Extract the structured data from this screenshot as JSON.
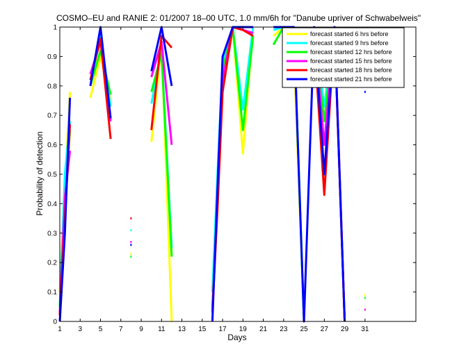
{
  "chart_data": {
    "type": "line",
    "title": "COSMO–EU and RANIE 2: 01/2007 18–00 UTC, 1.0 mm/6h for \"Danube upriver of Schwabelweis\"",
    "xlabel": "Days",
    "ylabel": "Probability of detection",
    "xlim": [
      1,
      36
    ],
    "ylim": [
      0,
      1
    ],
    "xticks": [
      1,
      3,
      5,
      7,
      9,
      11,
      13,
      15,
      17,
      19,
      21,
      23,
      25,
      27,
      29,
      31
    ],
    "yticks": [
      0,
      0.1,
      0.2,
      0.3,
      0.4,
      0.5,
      0.6,
      0.7,
      0.8,
      0.9,
      1
    ],
    "legend_position": "top-right",
    "series": [
      {
        "name": "forecast started 6 hrs before",
        "color": "#ffff00",
        "points": [
          [
            1,
            0.1
          ],
          [
            1.5,
            0.45
          ],
          [
            2,
            0.78
          ],
          [
            null,
            null
          ],
          [
            4,
            0.76
          ],
          [
            5,
            0.9
          ],
          [
            6,
            0.75
          ],
          [
            null,
            null
          ],
          [
            8,
            0.23
          ],
          [
            null,
            null
          ],
          [
            10,
            0.61
          ],
          [
            11,
            0.94
          ],
          [
            12,
            0.0
          ],
          [
            null,
            null
          ],
          [
            16,
            0.06
          ],
          [
            16.5,
            0.38
          ],
          [
            17,
            0.8
          ],
          [
            18,
            1.0
          ],
          [
            19,
            0.57
          ],
          [
            20,
            1.0
          ],
          [
            null,
            null
          ],
          [
            22,
            0.97
          ],
          [
            23,
            1.0
          ],
          [
            24,
            0.93
          ],
          [
            25,
            0.0
          ],
          [
            null,
            null
          ],
          [
            26,
            0.96
          ],
          [
            27,
            0.91
          ],
          [
            28,
            1.0
          ],
          [
            29,
            0.0
          ],
          [
            null,
            null
          ],
          [
            31,
            0.09
          ]
        ]
      },
      {
        "name": "forecast started 9 hrs before",
        "color": "#00ffff",
        "points": [
          [
            1,
            0.05
          ],
          [
            1.5,
            0.5
          ],
          [
            2,
            0.68
          ],
          [
            null,
            null
          ],
          [
            4,
            0.82
          ],
          [
            5,
            0.97
          ],
          [
            6,
            0.73
          ],
          [
            null,
            null
          ],
          [
            8,
            0.31
          ],
          [
            null,
            null
          ],
          [
            10,
            0.74
          ],
          [
            11,
            0.92
          ],
          [
            12,
            0.25
          ],
          [
            null,
            null
          ],
          [
            16,
            0.1
          ],
          [
            16.5,
            0.5
          ],
          [
            17,
            0.88
          ],
          [
            18,
            1.0
          ],
          [
            19,
            0.72
          ],
          [
            20,
            1.0
          ],
          [
            null,
            null
          ],
          [
            22,
            0.99
          ],
          [
            23,
            1.0
          ],
          [
            24,
            1.0
          ],
          [
            25,
            0.0
          ],
          [
            null,
            null
          ],
          [
            26,
            0.99
          ],
          [
            27,
            0.73
          ],
          [
            28,
            1.0
          ],
          [
            29,
            0.0
          ]
        ]
      },
      {
        "name": "forecast started 12 hrs before",
        "color": "#00ff00",
        "points": [
          [
            1,
            0.05
          ],
          [
            1.5,
            0.4
          ],
          [
            2,
            0.65
          ],
          [
            null,
            null
          ],
          [
            4,
            0.8
          ],
          [
            5,
            0.92
          ],
          [
            6,
            0.77
          ],
          [
            null,
            null
          ],
          [
            8,
            0.22
          ],
          [
            null,
            null
          ],
          [
            10,
            0.78
          ],
          [
            11,
            0.91
          ],
          [
            12,
            0.22
          ],
          [
            null,
            null
          ],
          [
            16,
            0.05
          ],
          [
            16.5,
            0.4
          ],
          [
            17,
            0.85
          ],
          [
            18,
            1.0
          ],
          [
            19,
            0.65
          ],
          [
            20,
            0.97
          ],
          [
            null,
            null
          ],
          [
            22,
            0.94
          ],
          [
            23,
            1.0
          ],
          [
            24,
            1.0
          ],
          [
            25,
            0.0
          ],
          [
            null,
            null
          ],
          [
            26,
            0.98
          ],
          [
            27,
            0.68
          ],
          [
            28,
            1.0
          ],
          [
            29,
            0.0
          ],
          [
            null,
            null
          ],
          [
            31,
            0.08
          ]
        ]
      },
      {
        "name": "forecast started 15 hrs before",
        "color": "#ff00ff",
        "points": [
          [
            1,
            0.03
          ],
          [
            1.5,
            0.42
          ],
          [
            2,
            0.58
          ],
          [
            null,
            null
          ],
          [
            4,
            0.84
          ],
          [
            5,
            0.95
          ],
          [
            6,
            0.68
          ],
          [
            null,
            null
          ],
          [
            8,
            0.27
          ],
          [
            null,
            null
          ],
          [
            10,
            0.83
          ],
          [
            11,
            0.95
          ],
          [
            12,
            0.6
          ],
          [
            null,
            null
          ],
          [
            16,
            0.04
          ],
          [
            16.5,
            0.4
          ],
          [
            17,
            0.82
          ],
          [
            18,
            1.0
          ],
          [
            19,
            0.99
          ],
          [
            20,
            0.98
          ],
          [
            null,
            null
          ],
          [
            25,
            0.0
          ],
          [
            null,
            null
          ],
          [
            26,
            0.99
          ],
          [
            27,
            0.6
          ],
          [
            28,
            1.0
          ],
          [
            29,
            0.0
          ],
          [
            null,
            null
          ],
          [
            31,
            0.04
          ]
        ]
      },
      {
        "name": "forecast started 18 hrs before",
        "color": "#ff0000",
        "points": [
          [
            1,
            0.02
          ],
          [
            1.5,
            0.35
          ],
          [
            2,
            0.67
          ],
          [
            null,
            null
          ],
          [
            4,
            0.82
          ],
          [
            5,
            0.96
          ],
          [
            6,
            0.62
          ],
          [
            null,
            null
          ],
          [
            8,
            0.35
          ],
          [
            null,
            null
          ],
          [
            10,
            0.65
          ],
          [
            11,
            0.97
          ],
          [
            12,
            0.93
          ],
          [
            null,
            null
          ],
          [
            16,
            0.03
          ],
          [
            16.5,
            0.38
          ],
          [
            17,
            0.78
          ],
          [
            18,
            1.0
          ],
          [
            19,
            0.99
          ],
          [
            20,
            0.97
          ],
          [
            null,
            null
          ],
          [
            25,
            0.0
          ],
          [
            null,
            null
          ],
          [
            26,
            0.96
          ],
          [
            27,
            0.43
          ],
          [
            28,
            0.99
          ],
          [
            29,
            0.0
          ]
        ]
      },
      {
        "name": "forecast started 21 hrs before",
        "color": "#0000ff",
        "points": [
          [
            1,
            0.0
          ],
          [
            1.5,
            0.3
          ],
          [
            2,
            0.76
          ],
          [
            null,
            null
          ],
          [
            4,
            0.8
          ],
          [
            5,
            1.0
          ],
          [
            6,
            0.69
          ],
          [
            null,
            null
          ],
          [
            8,
            0.26
          ],
          [
            null,
            null
          ],
          [
            10,
            0.85
          ],
          [
            11,
            1.0
          ],
          [
            12,
            0.8
          ],
          [
            null,
            null
          ],
          [
            16,
            0.0
          ],
          [
            16.5,
            0.45
          ],
          [
            17,
            0.9
          ],
          [
            18,
            1.0
          ],
          [
            19,
            1.0
          ],
          [
            20,
            1.0
          ],
          [
            null,
            null
          ],
          [
            22,
            1.0
          ],
          [
            23,
            1.0
          ],
          [
            24,
            1.0
          ],
          [
            25,
            0.0
          ],
          [
            26,
            1.0
          ],
          [
            27,
            0.5
          ],
          [
            28,
            1.0
          ],
          [
            29,
            0.0
          ],
          [
            null,
            null
          ],
          [
            31,
            0.78
          ]
        ]
      }
    ]
  }
}
